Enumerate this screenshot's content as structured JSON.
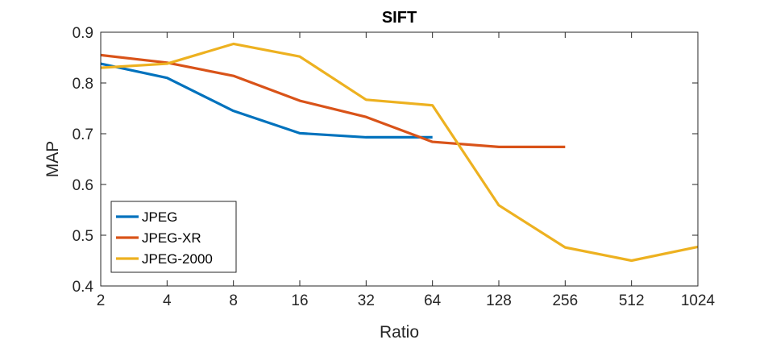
{
  "chart_data": {
    "type": "line",
    "title": "SIFT",
    "xlabel": "Ratio",
    "ylabel": "MAP",
    "x_scale": "log2",
    "xlim": [
      2,
      1024
    ],
    "ylim": [
      0.4,
      0.9
    ],
    "x_ticks": [
      2,
      4,
      8,
      16,
      32,
      64,
      128,
      256,
      512,
      1024
    ],
    "x_tick_labels": [
      "2",
      "4",
      "8",
      "16",
      "32",
      "64",
      "128",
      "256",
      "512",
      "1024"
    ],
    "y_ticks": [
      0.4,
      0.5,
      0.6,
      0.7,
      0.8,
      0.9
    ],
    "y_tick_labels": [
      "0.4",
      "0.5",
      "0.6",
      "0.7",
      "0.8",
      "0.9"
    ],
    "grid": false,
    "legend_position": "bottom-left",
    "series": [
      {
        "name": "JPEG",
        "color": "#0072BD",
        "points": [
          [
            2,
            0.838
          ],
          [
            4,
            0.81
          ],
          [
            8,
            0.745
          ],
          [
            16,
            0.701
          ],
          [
            32,
            0.693
          ],
          [
            64,
            0.693
          ]
        ]
      },
      {
        "name": "JPEG-XR",
        "color": "#D95319",
        "points": [
          [
            2,
            0.855
          ],
          [
            4,
            0.84
          ],
          [
            8,
            0.814
          ],
          [
            16,
            0.765
          ],
          [
            32,
            0.733
          ],
          [
            64,
            0.684
          ],
          [
            128,
            0.674
          ],
          [
            256,
            0.674
          ]
        ]
      },
      {
        "name": "JPEG-2000",
        "color": "#EDB120",
        "points": [
          [
            2,
            0.83
          ],
          [
            4,
            0.838
          ],
          [
            8,
            0.877
          ],
          [
            16,
            0.852
          ],
          [
            32,
            0.767
          ],
          [
            64,
            0.756
          ],
          [
            128,
            0.559
          ],
          [
            256,
            0.476
          ],
          [
            512,
            0.45
          ],
          [
            1024,
            0.477
          ]
        ]
      }
    ]
  }
}
